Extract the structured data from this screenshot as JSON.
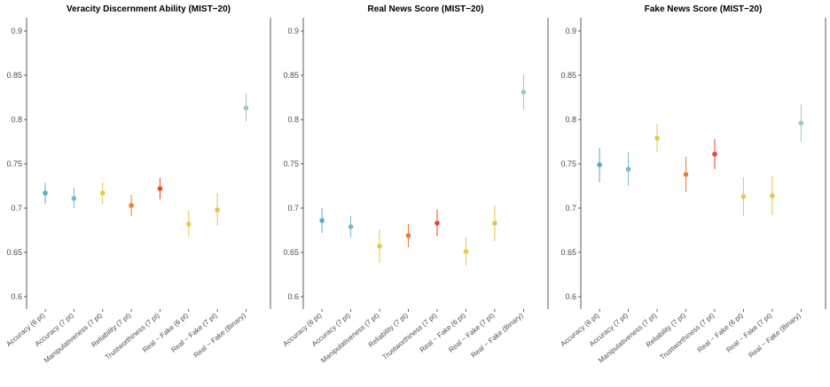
{
  "chart_data": [
    {
      "type": "scatter",
      "title": "Veracity Discernment Ability (MIST−20)",
      "xlabel": "",
      "ylabel": "",
      "ylim": [
        0.59,
        0.915
      ],
      "yticks": [
        0.6,
        0.65,
        0.7,
        0.75,
        0.8,
        0.85,
        0.9
      ],
      "ytick_labels": [
        "0.6",
        "0.65",
        "0.7",
        "0.75",
        "0.8",
        "0.85",
        "0.9"
      ],
      "grid": false,
      "categories": [
        "Accuracy (6 pt)",
        "Accuracy (7 pt)",
        "Manipulativeness (7 pt)",
        "Reliability (7 pt)",
        "Trustworthiness (7 pt)",
        "Real − Fake (6 pt)",
        "Real − Fake (7 pt)",
        "Real − Fake (Binary)"
      ],
      "values": [
        0.717,
        0.711,
        0.717,
        0.703,
        0.722,
        0.682,
        0.698,
        0.813
      ],
      "ci_low": [
        0.705,
        0.7,
        0.705,
        0.691,
        0.71,
        0.668,
        0.68,
        0.798
      ],
      "ci_high": [
        0.729,
        0.723,
        0.729,
        0.715,
        0.734,
        0.697,
        0.717,
        0.829
      ]
    },
    {
      "type": "scatter",
      "title": "Real News Score (MIST−20)",
      "xlabel": "",
      "ylabel": "",
      "ylim": [
        0.59,
        0.915
      ],
      "yticks": [
        0.6,
        0.65,
        0.7,
        0.75,
        0.8,
        0.85,
        0.9
      ],
      "ytick_labels": [
        "0.6",
        "0.65",
        "0.7",
        "0.75",
        "0.8",
        "0.85",
        "0.9"
      ],
      "grid": false,
      "categories": [
        "Accuracy (6 pt)",
        "Accuracy (7 pt)",
        "Manipulativeness (7 pt)",
        "Reliability (7 pt)",
        "Trustworthiness (7 pt)",
        "Real − Fake (6 pt)",
        "Real − Fake (7 pt)",
        "Real − Fake (Binary)"
      ],
      "values": [
        0.686,
        0.679,
        0.657,
        0.669,
        0.683,
        0.651,
        0.683,
        0.831
      ],
      "ci_low": [
        0.672,
        0.667,
        0.638,
        0.656,
        0.668,
        0.635,
        0.663,
        0.812
      ],
      "ci_high": [
        0.7,
        0.691,
        0.676,
        0.682,
        0.698,
        0.667,
        0.703,
        0.85
      ]
    },
    {
      "type": "scatter",
      "title": "Fake News Score (MIST−20)",
      "xlabel": "",
      "ylabel": "",
      "ylim": [
        0.59,
        0.915
      ],
      "yticks": [
        0.6,
        0.65,
        0.7,
        0.75,
        0.8,
        0.85,
        0.9
      ],
      "ytick_labels": [
        "0.6",
        "0.65",
        "0.7",
        "0.75",
        "0.8",
        "0.85",
        "0.9"
      ],
      "grid": false,
      "categories": [
        "Accuracy (6 pt)",
        "Accuracy (7 pt)",
        "Manipulativeness (7 pt)",
        "Reliability (7 pt)",
        "Trustworthiness (7 pt)",
        "Real − Fake (6 pt)",
        "Real − Fake (7 pt)",
        "Real − Fake (Binary)"
      ],
      "values": [
        0.749,
        0.744,
        0.779,
        0.738,
        0.761,
        0.713,
        0.714,
        0.796
      ],
      "ci_low": [
        0.729,
        0.725,
        0.763,
        0.718,
        0.744,
        0.691,
        0.692,
        0.775
      ],
      "ci_high": [
        0.768,
        0.763,
        0.795,
        0.758,
        0.778,
        0.735,
        0.736,
        0.817
      ]
    }
  ],
  "colors": [
    "#5aa9c9",
    "#7bb8d0",
    "#e3c84a",
    "#ee7b2e",
    "#e8452e",
    "#e8c94c",
    "#e2c44e",
    "#99cbbb"
  ]
}
